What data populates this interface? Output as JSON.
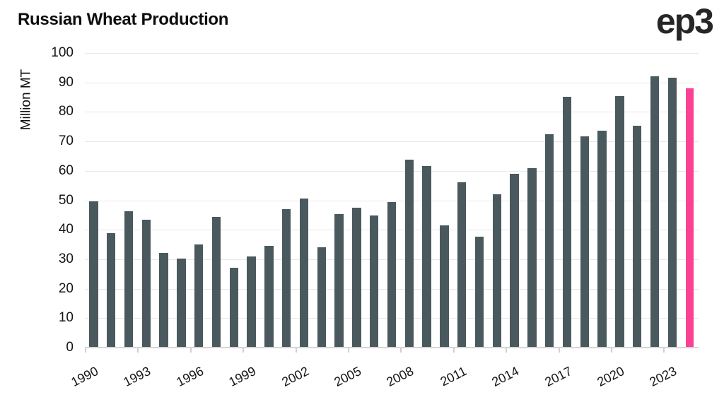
{
  "header": {
    "title": "Russian Wheat Production",
    "logo_text": "ep3"
  },
  "chart_data": {
    "type": "bar",
    "title": "Russian Wheat Production",
    "xlabel": "",
    "ylabel": "Million MT",
    "ylim": [
      0,
      100
    ],
    "grid": "horizontal",
    "legend": "none",
    "y_ticks": [
      0,
      10,
      20,
      30,
      40,
      50,
      60,
      70,
      80,
      90,
      100
    ],
    "x_tick_labels": [
      "1990",
      "1993",
      "1996",
      "1999",
      "2002",
      "2005",
      "2008",
      "2011",
      "2014",
      "2017",
      "2020",
      "2023"
    ],
    "years": [
      1990,
      1991,
      1992,
      1993,
      1994,
      1995,
      1996,
      1997,
      1998,
      1999,
      2000,
      2001,
      2002,
      2003,
      2004,
      2005,
      2006,
      2007,
      2008,
      2009,
      2010,
      2011,
      2012,
      2013,
      2014,
      2015,
      2016,
      2017,
      2018,
      2019,
      2020,
      2021,
      2022,
      2023,
      2024
    ],
    "values": [
      49.6,
      38.9,
      46.2,
      43.5,
      32.1,
      30.1,
      34.9,
      44.3,
      27.0,
      31.0,
      34.5,
      47.0,
      50.6,
      34.1,
      45.4,
      47.6,
      44.9,
      49.4,
      63.8,
      61.7,
      41.5,
      56.2,
      37.7,
      52.1,
      59.1,
      61.0,
      72.5,
      85.2,
      71.7,
      73.6,
      85.4,
      75.2,
      92.0,
      91.5,
      88.0
    ],
    "highlight_year": 2024,
    "colors": {
      "bar": "#4A595D",
      "highlight": "#FB4193",
      "gridline": "#E8E8E8",
      "axis": "#D6D6D6",
      "text": "#141414"
    }
  }
}
